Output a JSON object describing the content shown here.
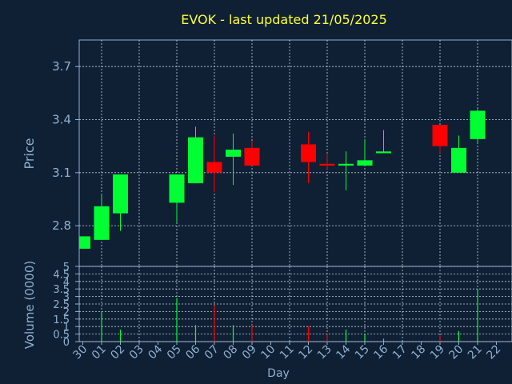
{
  "chart_data": [
    {
      "type": "candlestick",
      "title": "EVOK - last updated 21/05/2025",
      "ylabel": "Price",
      "xlabel": "",
      "ylim": [
        2.57,
        3.85
      ],
      "yticks": [
        "2.8",
        "3.1",
        "3.4",
        "3.7"
      ],
      "grid": true,
      "categories": [
        "30",
        "01",
        "02",
        "03",
        "04",
        "05",
        "06",
        "07",
        "08",
        "09",
        "10",
        "11",
        "12",
        "13",
        "14",
        "15",
        "16",
        "17",
        "18",
        "19",
        "20",
        "21",
        "22"
      ],
      "candles": [
        {
          "x": 0,
          "open": 2.67,
          "high": 2.74,
          "low": 2.67,
          "close": 2.74
        },
        {
          "x": 1,
          "open": 2.72,
          "high": 2.98,
          "low": 2.72,
          "close": 2.91
        },
        {
          "x": 2,
          "open": 2.87,
          "high": 3.09,
          "low": 2.77,
          "close": 3.09
        },
        {
          "x": 5,
          "open": 2.93,
          "high": 3.09,
          "low": 2.82,
          "close": 3.09
        },
        {
          "x": 6,
          "open": 3.04,
          "high": 3.36,
          "low": 3.04,
          "close": 3.3
        },
        {
          "x": 7,
          "open": 3.16,
          "high": 3.31,
          "low": 2.99,
          "close": 3.1
        },
        {
          "x": 8,
          "open": 3.19,
          "high": 3.32,
          "low": 3.03,
          "close": 3.23
        },
        {
          "x": 9,
          "open": 3.24,
          "high": 3.28,
          "low": 3.14,
          "close": 3.14
        },
        {
          "x": 12,
          "open": 3.26,
          "high": 3.33,
          "low": 3.04,
          "close": 3.16
        },
        {
          "x": 13,
          "open": 3.15,
          "high": 3.21,
          "low": 3.12,
          "close": 3.14
        },
        {
          "x": 14,
          "open": 3.14,
          "high": 3.22,
          "low": 3.0,
          "close": 3.15
        },
        {
          "x": 15,
          "open": 3.14,
          "high": 3.29,
          "low": 3.14,
          "close": 3.17
        },
        {
          "x": 16,
          "open": 3.21,
          "high": 3.34,
          "low": 3.21,
          "close": 3.22
        },
        {
          "x": 19,
          "open": 3.37,
          "high": 3.37,
          "low": 3.21,
          "close": 3.25
        },
        {
          "x": 20,
          "open": 3.1,
          "high": 3.31,
          "low": 3.1,
          "close": 3.24
        },
        {
          "x": 21,
          "open": 3.29,
          "high": 3.46,
          "low": 3.27,
          "close": 3.45
        }
      ],
      "colors": {
        "up": "#00ff33",
        "down": "#ff0000",
        "background": "#0f2035",
        "grid": "#c8d0d8",
        "axis": "#8fb0cf",
        "title": "#ffff33"
      }
    },
    {
      "type": "bar",
      "ylabel": "Volume (0000)",
      "xlabel": "Day",
      "ylim": [
        0,
        5
      ],
      "yticks": [
        "0",
        "0.5",
        "1",
        "1.5",
        "2",
        "2.5",
        "3",
        "3.5",
        "4",
        "4.5",
        "5"
      ],
      "categories": [
        "30",
        "01",
        "02",
        "03",
        "04",
        "05",
        "06",
        "07",
        "08",
        "09",
        "10",
        "11",
        "12",
        "13",
        "14",
        "15",
        "16",
        "17",
        "18",
        "19",
        "20",
        "21",
        "22"
      ],
      "bars": [
        {
          "x": 1,
          "value": 2.0,
          "dir": "up"
        },
        {
          "x": 2,
          "value": 0.8,
          "dir": "up"
        },
        {
          "x": 5,
          "value": 2.9,
          "dir": "up"
        },
        {
          "x": 6,
          "value": 1.1,
          "dir": "up"
        },
        {
          "x": 7,
          "value": 2.4,
          "dir": "down"
        },
        {
          "x": 8,
          "value": 1.1,
          "dir": "up"
        },
        {
          "x": 9,
          "value": 1.1,
          "dir": "down"
        },
        {
          "x": 12,
          "value": 1.0,
          "dir": "down"
        },
        {
          "x": 13,
          "value": 0.5,
          "dir": "down"
        },
        {
          "x": 14,
          "value": 0.8,
          "dir": "up"
        },
        {
          "x": 15,
          "value": 0.5,
          "dir": "up"
        },
        {
          "x": 16,
          "value": 0.2,
          "dir": "up"
        },
        {
          "x": 19,
          "value": 0.4,
          "dir": "down"
        },
        {
          "x": 20,
          "value": 0.7,
          "dir": "up"
        },
        {
          "x": 21,
          "value": 3.5,
          "dir": "up"
        }
      ]
    }
  ]
}
